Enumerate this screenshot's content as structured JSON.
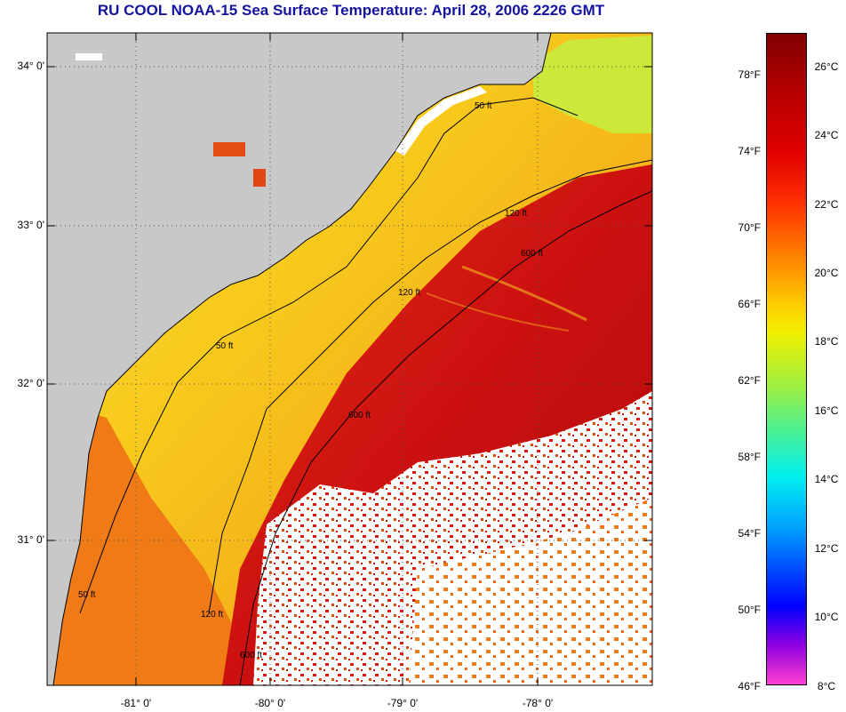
{
  "title": "RU COOL  NOAA-15  Sea Surface Temperature:  April 28, 2006 2226 GMT",
  "map": {
    "lat_labels": [
      "34° 0'",
      "33° 0'",
      "32° 0'",
      "31° 0'"
    ],
    "lon_labels": [
      "-81° 0'",
      "-80° 0'",
      "-79° 0'",
      "-78° 0'"
    ],
    "isobath_labels": [
      "50 ft",
      "50 ft",
      "50 ft",
      "120 ft",
      "120 ft",
      "600 ft",
      "600 ft",
      "600 ft",
      "120 ft"
    ]
  },
  "colorbar": {
    "fahrenheit_labels": [
      "78°F",
      "74°F",
      "70°F",
      "66°F",
      "62°F",
      "58°F",
      "54°F",
      "50°F",
      "46°F"
    ],
    "celsius_labels": [
      "26°C",
      "24°C",
      "22°C",
      "20°C",
      "18°C",
      "16°C",
      "14°C",
      "12°C",
      "10°C",
      "8°C"
    ]
  },
  "colors": {
    "land": "#c8c8c8",
    "warm_gulf_stream": "#cc1010",
    "shelf_water": "#f8d41a",
    "title_blue": "#1414a0"
  }
}
